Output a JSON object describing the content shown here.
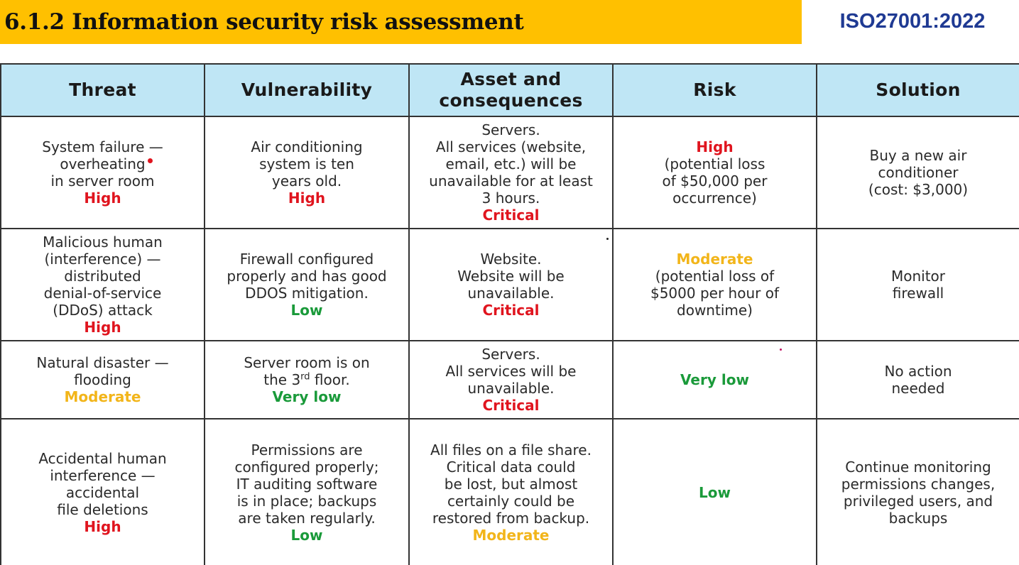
{
  "header": {
    "title": "6.1.2 Information security risk assessment",
    "standard": "ISO27001:2022"
  },
  "table": {
    "columns": [
      "Threat",
      "Vulnerability",
      "Asset and consequences",
      "Risk",
      "Solution"
    ],
    "rows": [
      {
        "threat": {
          "lines": [
            "System failure —",
            "overheating",
            "in server room"
          ],
          "level": "High"
        },
        "vulnerability": {
          "lines": [
            "Air conditioning",
            "system is ten",
            "years old."
          ],
          "level": "High"
        },
        "asset": {
          "lines": [
            "Servers.",
            "All services (website,",
            "email, etc.) will be",
            "unavailable for at least",
            "3 hours."
          ],
          "level": "Critical"
        },
        "risk": {
          "level": "High",
          "lines": [
            "(potential loss",
            "of $50,000 per",
            "occurrence)"
          ]
        },
        "solution": {
          "lines": [
            "Buy a new air",
            "conditioner",
            "(cost: $3,000)"
          ]
        }
      },
      {
        "threat": {
          "lines": [
            "Malicious human",
            "(interference) —",
            "distributed",
            "denial-of-service",
            "(DDoS) attack"
          ],
          "level": "High"
        },
        "vulnerability": {
          "lines": [
            "Firewall configured",
            "properly and has good",
            "DDOS mitigation."
          ],
          "level": "Low"
        },
        "asset": {
          "lines": [
            "Website.",
            "Website will be",
            "unavailable."
          ],
          "level": "Critical"
        },
        "risk": {
          "level": "Moderate",
          "lines": [
            "(potential loss of",
            "$5000 per hour of",
            "downtime)"
          ]
        },
        "solution": {
          "lines": [
            "Monitor",
            "firewall"
          ]
        }
      },
      {
        "threat": {
          "lines": [
            "Natural disaster —",
            "flooding"
          ],
          "level": "Moderate"
        },
        "vulnerability": {
          "line1": "Server room is on",
          "line2_pre": "the 3",
          "line2_sup": "rd",
          "line2_post": " floor.",
          "level": "Very low"
        },
        "asset": {
          "lines": [
            "Servers.",
            "All services will be",
            "unavailable."
          ],
          "level": "Critical"
        },
        "risk": {
          "level": "Very low"
        },
        "solution": {
          "lines": [
            "No action",
            "needed"
          ]
        }
      },
      {
        "threat": {
          "lines": [
            "Accidental human",
            "interference —",
            "accidental",
            "file deletions"
          ],
          "level": "High"
        },
        "vulnerability": {
          "lines": [
            "Permissions are",
            "configured properly;",
            "IT auditing software",
            "is in place; backups",
            "are taken regularly."
          ],
          "level": "Low"
        },
        "asset": {
          "lines": [
            "All files on a file share.",
            "Critical data could",
            "be lost, but almost",
            "certainly could be",
            "restored from backup."
          ],
          "level": "Moderate"
        },
        "risk": {
          "level": "Low"
        },
        "solution": {
          "lines": [
            "Continue monitoring",
            "permissions changes,",
            "privileged users, and",
            "backups"
          ]
        }
      }
    ]
  },
  "colors": {
    "title_bar": "#ffc000",
    "header_row": "#bfe6f5",
    "high": "#e0141e",
    "moderate": "#f2b51a",
    "low": "#1a9a3a",
    "standard_text": "#1f3a93"
  }
}
